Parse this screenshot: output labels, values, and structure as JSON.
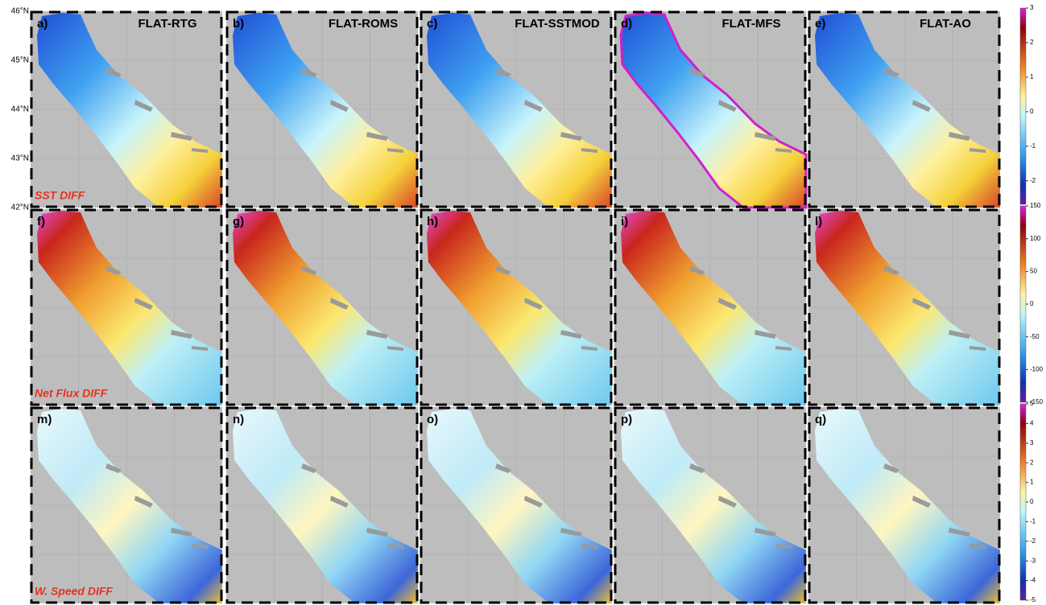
{
  "latitude_labels": [
    "46°N",
    "45°N",
    "44°N",
    "43°N",
    "42°N"
  ],
  "column_titles": [
    "FLAT-RTG",
    "FLAT-ROMS",
    "FLAT-SSTMOD",
    "FLAT-MFS",
    "FLAT-AO"
  ],
  "rows": [
    {
      "label": "SST DIFF",
      "panels": [
        "a)",
        "b)",
        "c)",
        "d)",
        "e)"
      ],
      "colorbar_ticks": [
        3,
        2,
        1,
        0,
        -1,
        -2
      ]
    },
    {
      "label": "Net Flux DIFF",
      "panels": [
        "f)",
        "g)",
        "h)",
        "i)",
        "l)"
      ],
      "colorbar_ticks": [
        150,
        100,
        50,
        0,
        -50,
        -100,
        -150
      ]
    },
    {
      "label": "W. Speed DIFF",
      "panels": [
        "m)",
        "n)",
        "o)",
        "p)",
        "q)"
      ],
      "colorbar_ticks": [
        5,
        4,
        3,
        2,
        1,
        0,
        -1,
        -2,
        -3,
        -4,
        -5
      ]
    }
  ]
}
